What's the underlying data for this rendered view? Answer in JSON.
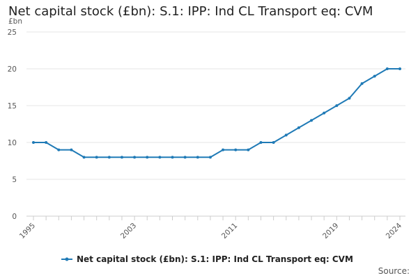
{
  "chart_data": {
    "type": "line",
    "title": "Net capital stock (£bn): S.1: IPP: Ind CL Transport eq: CVM",
    "ylabel": "£bn",
    "xlabel": "",
    "ylim": [
      0,
      25
    ],
    "yticks": [
      0,
      5,
      10,
      15,
      20,
      25
    ],
    "xtick_labels": [
      "1995",
      "2003",
      "2011",
      "2019",
      "2024"
    ],
    "grid": "horizontal",
    "legend_position": "bottom",
    "source_label": "Source:",
    "x": [
      1995,
      1996,
      1997,
      1998,
      1999,
      2000,
      2001,
      2002,
      2003,
      2004,
      2005,
      2006,
      2007,
      2008,
      2009,
      2010,
      2011,
      2012,
      2013,
      2014,
      2015,
      2016,
      2017,
      2018,
      2019,
      2020,
      2021,
      2022,
      2023,
      2024
    ],
    "series": [
      {
        "name": "Net capital stock (£bn): S.1: IPP: Ind CL Transport eq: CVM",
        "color": "#1f7ab6",
        "values": [
          10,
          10,
          9,
          9,
          8,
          8,
          8,
          8,
          8,
          8,
          8,
          8,
          8,
          8,
          8,
          9,
          9,
          9,
          10,
          10,
          11,
          12,
          13,
          14,
          15,
          16,
          18,
          19,
          20,
          20
        ]
      }
    ]
  }
}
